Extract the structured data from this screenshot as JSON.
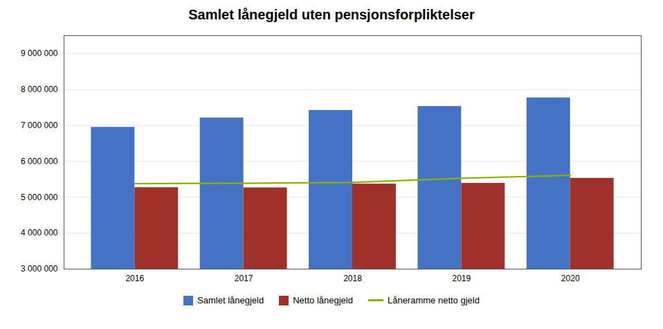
{
  "chart_data": {
    "type": "bar",
    "title": "Samlet lånegjeld uten pensjonsforpliktelser",
    "categories": [
      "2016",
      "2017",
      "2018",
      "2019",
      "2020"
    ],
    "series": [
      {
        "name": "Samlet lånegjeld",
        "type": "bar",
        "color": "#4472C4",
        "values": [
          6950000,
          7210000,
          7420000,
          7530000,
          7770000
        ]
      },
      {
        "name": "Netto lånegjeld",
        "type": "bar",
        "color": "#A0302A",
        "values": [
          5270000,
          5265000,
          5370000,
          5390000,
          5530000
        ]
      },
      {
        "name": "Låneramme netto gjeld",
        "type": "line",
        "color": "#8DB000",
        "values": [
          5380000,
          5390000,
          5415000,
          5530000,
          5610000
        ]
      }
    ],
    "ylim": [
      3000000,
      9500000
    ],
    "yticks": [
      {
        "value": 3000000,
        "label": "3 000 000"
      },
      {
        "value": 4000000,
        "label": "4 000 000"
      },
      {
        "value": 5000000,
        "label": "5 000 000"
      },
      {
        "value": 6000000,
        "label": "6 000 000"
      },
      {
        "value": 7000000,
        "label": "7 000 000"
      },
      {
        "value": 8000000,
        "label": "8 000 000"
      },
      {
        "value": 9000000,
        "label": "9 000 000"
      }
    ],
    "grid": true,
    "legend": "bottom"
  }
}
